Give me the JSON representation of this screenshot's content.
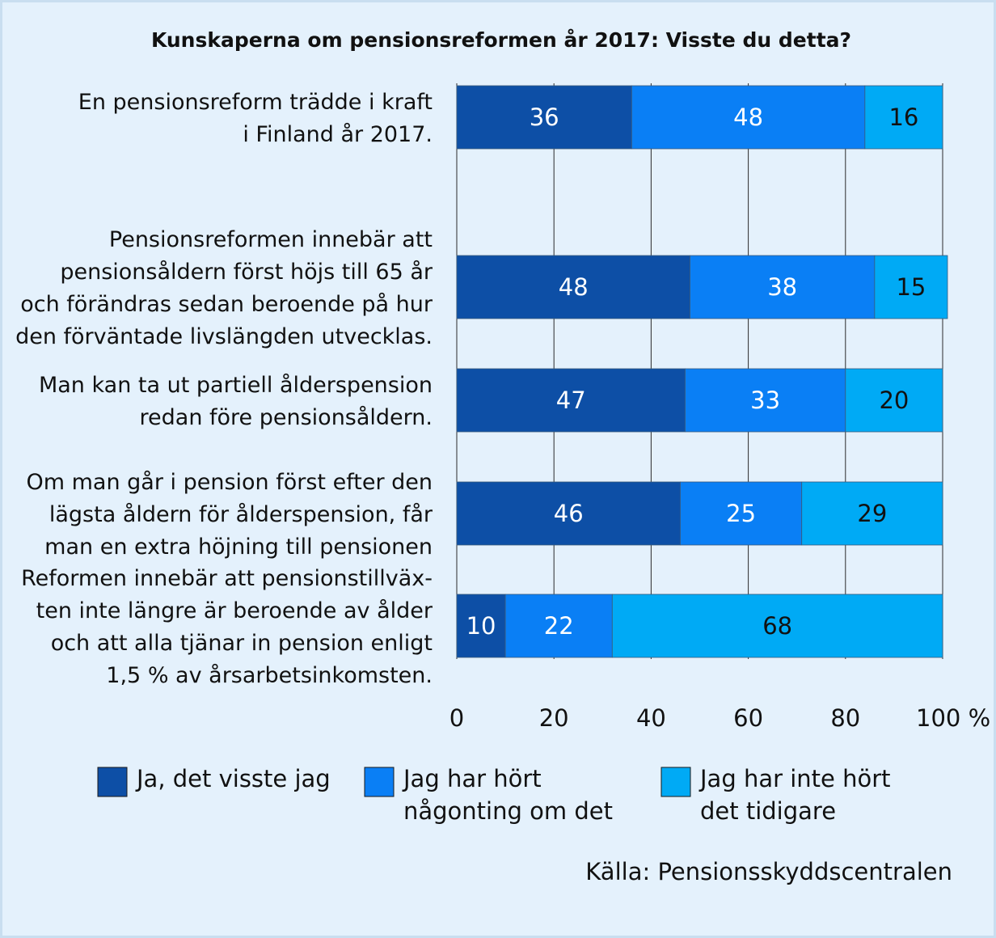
{
  "chart_data": {
    "type": "bar",
    "orientation": "horizontal",
    "stacked": true,
    "title": "Kunskaperna om pensionsreformen år 2017: Visste du detta?",
    "categories": [
      [
        "En pensionsreform trädde i kraft",
        "i Finland år 2017."
      ],
      [
        "Pensionsreformen innebär att",
        "pensionsåldern först höjs till 65 år",
        "och förändras sedan beroende på hur",
        "den förväntade livslängden utvecklas."
      ],
      [
        "Man kan ta ut partiell ålderspension",
        "redan före pensionsåldern."
      ],
      [
        "Om man går i pension först efter den",
        "lägsta åldern för ålderspension, får",
        "man en extra höjning till pensionen"
      ],
      [
        "Reformen innebär att pensionstillväx-",
        "ten inte längre är beroende av ålder",
        "och att alla tjänar in pension enligt",
        "1,5 % av årsarbetsinkomsten."
      ]
    ],
    "series": [
      {
        "name": "Ja, det visste jag",
        "color": "#0d4fa6",
        "label_color": "#ffffff",
        "values": [
          36,
          48,
          47,
          46,
          10
        ]
      },
      {
        "name": "Jag har hört någonting om det",
        "color": "#0a7ff5",
        "label_color": "#ffffff",
        "values": [
          48,
          38,
          33,
          25,
          22
        ]
      },
      {
        "name": "Jag har inte hört det tidigare",
        "color": "#00aaf5",
        "label_color": "#111111",
        "values": [
          16,
          15,
          20,
          29,
          68
        ]
      }
    ],
    "legend": [
      [
        "Ja, det visste jag"
      ],
      [
        "Jag har hört",
        "någonting om det"
      ],
      [
        "Jag har inte hört",
        "det tidigare"
      ]
    ],
    "xlim": [
      0,
      100
    ],
    "xticks": [
      "0",
      "20",
      "40",
      "60",
      "80",
      "100 %"
    ],
    "grid": true,
    "legend_position": "bottom",
    "source": "Källa: Pensionsskyddscentralen"
  }
}
